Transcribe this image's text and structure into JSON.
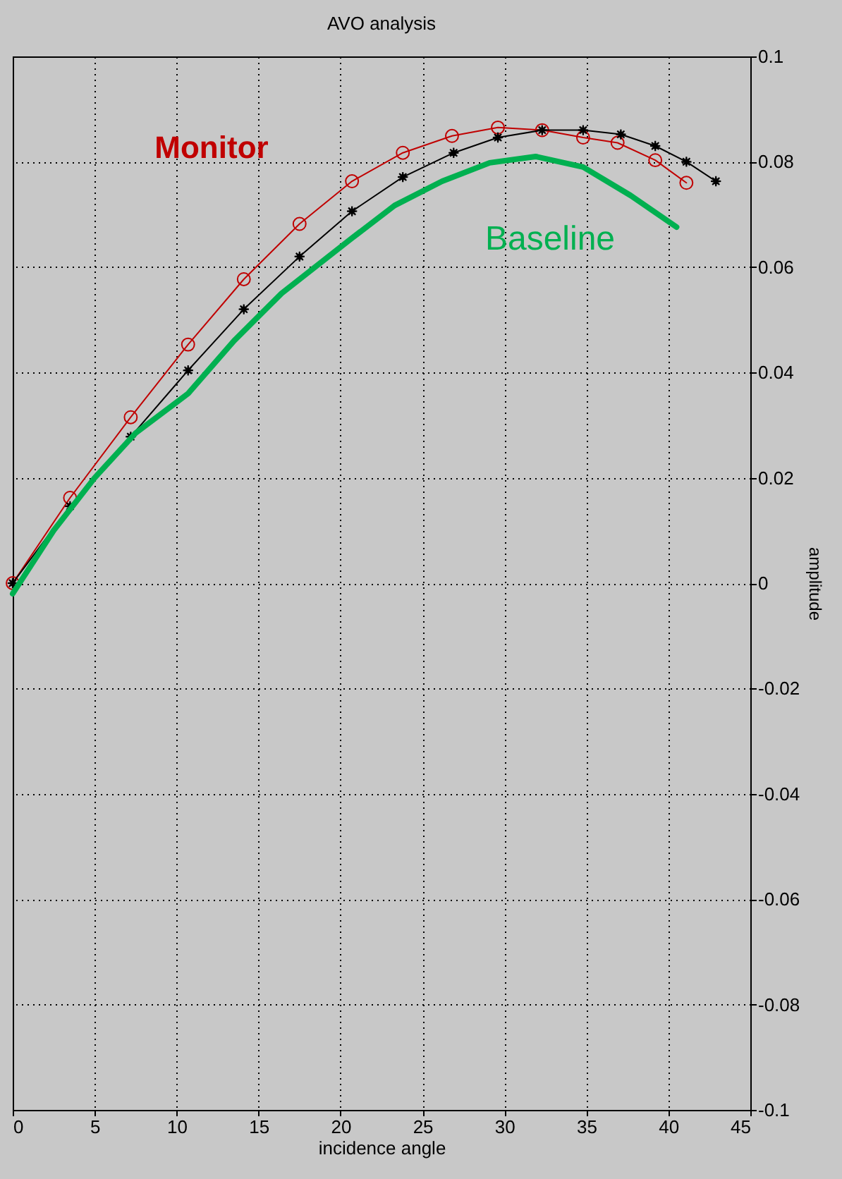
{
  "chart_data": {
    "type": "line",
    "title": "AVO analysis",
    "xlabel": "incidence angle",
    "ylabel": "amplitude",
    "xlim": [
      0,
      45
    ],
    "xticks": [
      0,
      5,
      10,
      15,
      20,
      25,
      30,
      35,
      40,
      45
    ],
    "ylim": [
      -0.1,
      0.1
    ],
    "yticks": [
      -0.1,
      -0.08,
      -0.06,
      -0.04,
      -0.02,
      0,
      0.02,
      0.04,
      0.06,
      0.08,
      0.1
    ],
    "grid": true,
    "series": [
      {
        "name": "Monitor",
        "color": "#c00000",
        "marker": "circle",
        "x": [
          0,
          3.5,
          7.2,
          10.7,
          14.1,
          17.5,
          20.7,
          23.8,
          26.8,
          29.6,
          32.3,
          34.8,
          36.9,
          39.2,
          41.1
        ],
        "values": [
          0,
          0.0162,
          0.0315,
          0.0453,
          0.0577,
          0.0682,
          0.0763,
          0.0817,
          0.0849,
          0.0865,
          0.086,
          0.0846,
          0.0836,
          0.0803,
          0.076
        ]
      },
      {
        "color": "#000000",
        "marker": "star",
        "x": [
          0,
          3.5,
          7.2,
          10.7,
          14.1,
          17.5,
          20.7,
          23.8,
          26.9,
          29.6,
          32.3,
          34.8,
          37.1,
          39.2,
          41.1,
          42.9
        ],
        "values": [
          0,
          0.0146,
          0.0278,
          0.0404,
          0.052,
          0.062,
          0.0706,
          0.0771,
          0.0817,
          0.0846,
          0.086,
          0.086,
          0.0852,
          0.083,
          0.08,
          0.0763
        ]
      },
      {
        "name": "Baseline",
        "color": "#00b050",
        "marker": "none",
        "x": [
          0,
          2.5,
          5,
          7.5,
          10.7,
          13.5,
          16.4,
          20.7,
          23.3,
          26.2,
          29.1,
          31.9,
          34.8,
          37.7,
          40.5
        ],
        "values": [
          -0.002,
          0.01,
          0.02,
          0.0285,
          0.036,
          0.046,
          0.055,
          0.0655,
          0.0717,
          0.0763,
          0.0798,
          0.081,
          0.079,
          0.0736,
          0.0676
        ]
      }
    ]
  }
}
